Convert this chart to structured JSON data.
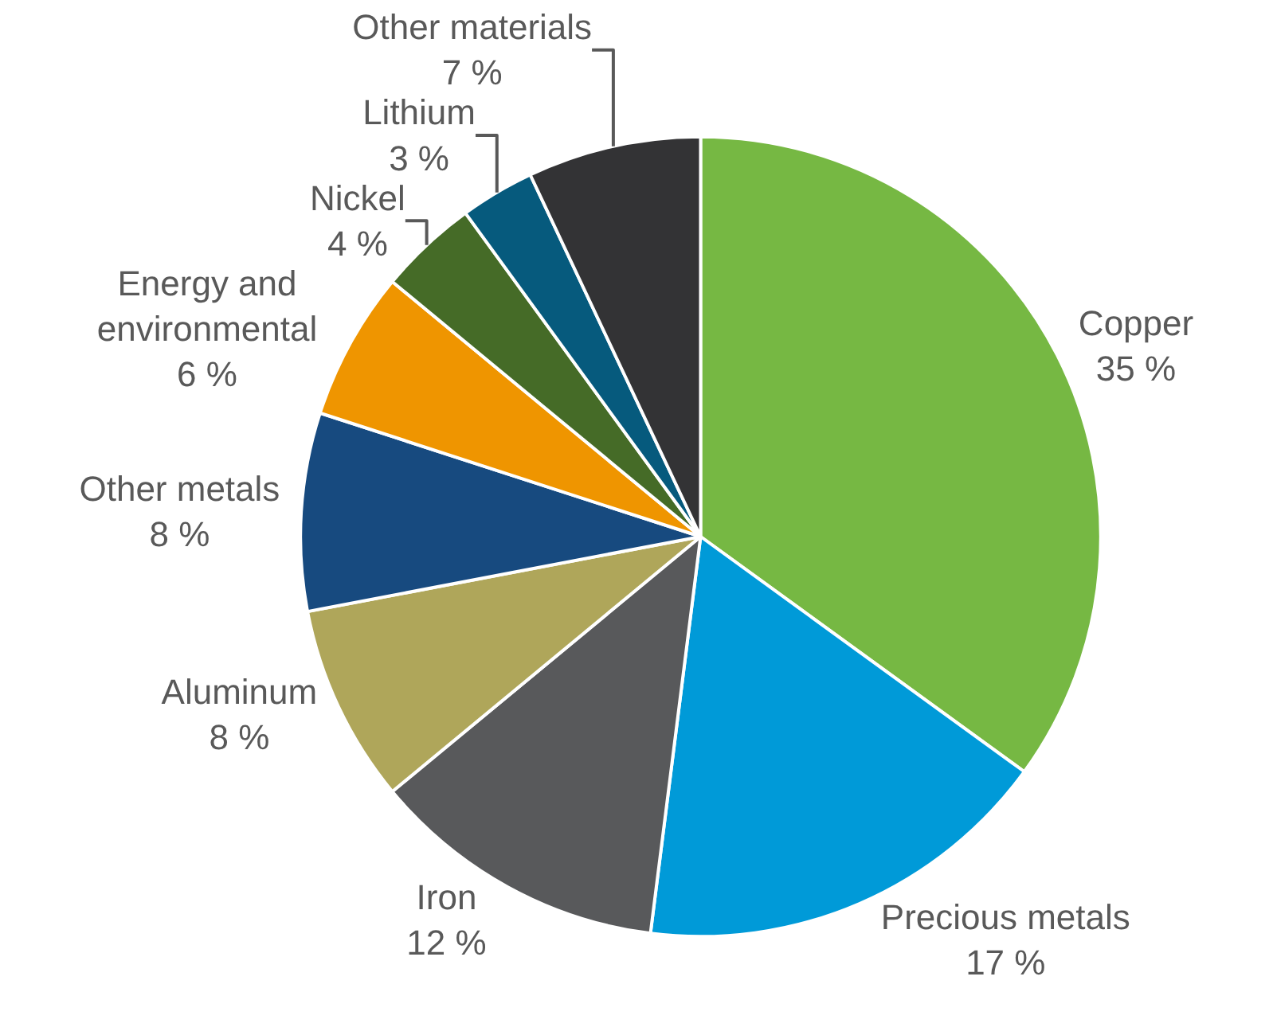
{
  "chart_data": {
    "type": "pie",
    "categories": [
      "Copper",
      "Precious metals",
      "Iron",
      "Aluminum",
      "Other metals",
      "Energy and environmental",
      "Nickel",
      "Lithium",
      "Other materials"
    ],
    "values": [
      35,
      17,
      12,
      8,
      8,
      6,
      4,
      3,
      7
    ],
    "value_labels": [
      "35 %",
      "17 %",
      "12 %",
      "8 %",
      "8 %",
      "6 %",
      "4 %",
      "3 %",
      "7 %"
    ],
    "colors": [
      "#76b843",
      "#009ad8",
      "#58595b",
      "#afa65a",
      "#174a7f",
      "#ef9500",
      "#456b27",
      "#065a7d",
      "#333335"
    ],
    "legend": false
  }
}
